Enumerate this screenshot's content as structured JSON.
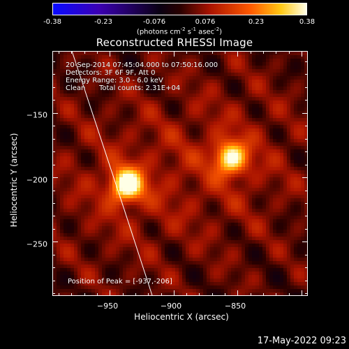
{
  "colorbar": {
    "tick_labels": [
      "-0.38",
      "-0.23",
      "-0.076",
      "0.076",
      "0.23",
      "0.38"
    ],
    "tick_values": [
      -0.38,
      -0.23,
      -0.076,
      0.076,
      0.23,
      0.38
    ],
    "units_prefix": "(photons cm",
    "units_exp1": "-2",
    "units_mid1": " s",
    "units_exp2": "-1",
    "units_mid2": " asec",
    "units_exp3": "-2",
    "units_suffix": ")"
  },
  "chart_data": {
    "type": "heatmap",
    "title": "Reconstructed RHESSI Image",
    "xlabel": "Heliocentric X (arcsec)",
    "ylabel": "Heliocentric Y (arcsec)",
    "xlim": [
      -995,
      -795
    ],
    "ylim": [
      -292,
      -102
    ],
    "x_ticks": [
      -950,
      -900,
      -850
    ],
    "x_tick_labels": [
      "−950",
      "−900",
      "−850"
    ],
    "y_ticks": [
      -150,
      -200,
      -250
    ],
    "y_tick_labels": [
      "−150",
      "−200",
      "−250"
    ],
    "sources": [
      {
        "x": -937,
        "y": -206,
        "peak": 0.38
      },
      {
        "x": -855,
        "y": -185,
        "peak": 0.32
      }
    ],
    "limb_curve": [
      {
        "x": -980,
        "y": -102
      },
      {
        "x": -960,
        "y": -162
      },
      {
        "x": -940,
        "y": -222
      },
      {
        "x": -917,
        "y": -292
      }
    ],
    "annotations": {
      "time": "20-Sep-2014 07:45:04.000 to 07:50:16.000",
      "detectors": "Detectors: 3F 6F 9F, Att 0",
      "energy": "Energy Range: 3.0 - 6.0 keV",
      "method": "Clean",
      "counts": "Total counts: 2.31E+04",
      "peak": "Position of Peak = [-937,-206]"
    }
  },
  "timestamp": "17-May-2022 09:23"
}
